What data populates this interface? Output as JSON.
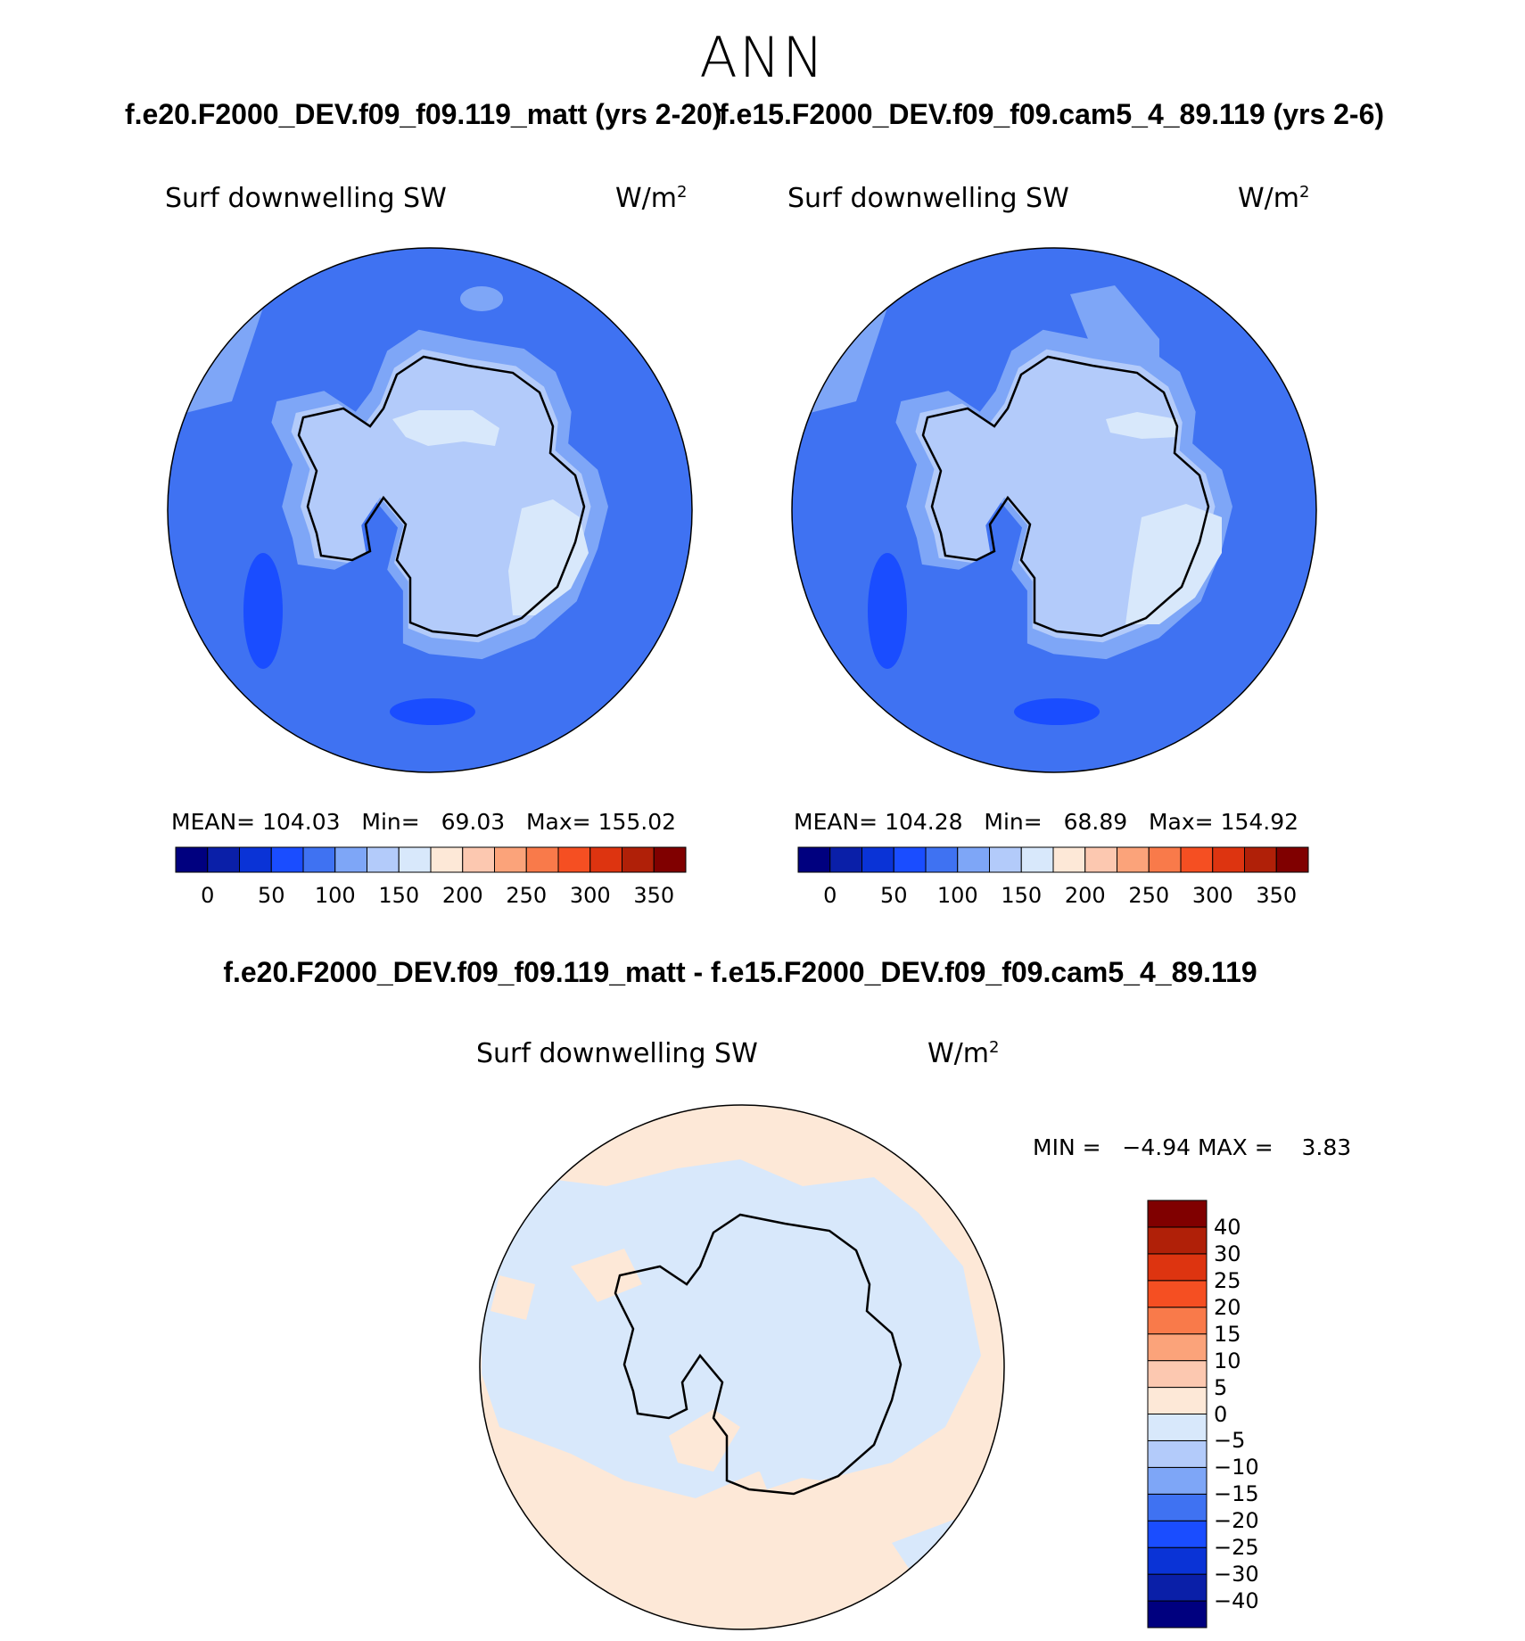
{
  "season": "ANN",
  "case1_title": "f.e20.F2000_DEV.f09_f09.119_matt (yrs 2-20)",
  "case2_title": "f.e15.F2000_DEV.f09_f09.cam5_4_89.119 (yrs 2-6)",
  "diff_title": "f.e20.F2000_DEV.f09_f09.119_matt - f.e15.F2000_DEV.f09_f09.cam5_4_89.119",
  "panels": [
    {
      "variable": "Surf downwelling SW",
      "units": "W/m",
      "units_sup": "2",
      "stats": {
        "mean_label": "MEAN=",
        "mean": "104.03",
        "min_label": "Min=",
        "min": "69.03",
        "max_label": "Max=",
        "max": "155.02"
      }
    },
    {
      "variable": "Surf downwelling SW",
      "units": "W/m",
      "units_sup": "2",
      "stats": {
        "mean_label": "MEAN=",
        "mean": "104.28",
        "min_label": "Min=",
        "min": "68.89",
        "max_label": "Max=",
        "max": "154.92"
      }
    },
    {
      "variable": "Surf downwelling SW",
      "units": "W/m",
      "units_sup": "2",
      "stats": {
        "min_label": "MIN =",
        "min": "−4.94",
        "max_label": "MAX =",
        "max": "3.83"
      }
    }
  ],
  "colorbar_main": {
    "colors": [
      "#00007f",
      "#0a1fa8",
      "#0a33d6",
      "#1a4dff",
      "#3f72f2",
      "#7ea6f7",
      "#b3cbfa",
      "#d8e8fb",
      "#fde8d7",
      "#fcc8b0",
      "#fba37a",
      "#f97a4a",
      "#f54f22",
      "#dd3410",
      "#b02008",
      "#800000"
    ],
    "labels": [
      "0",
      "50",
      "100",
      "150",
      "200",
      "250",
      "300",
      "350"
    ]
  },
  "colorbar_diff": {
    "colors": [
      "#00007f",
      "#0a1fa8",
      "#0a33d6",
      "#1a4dff",
      "#3f72f2",
      "#7ea6f7",
      "#b3cbfa",
      "#d8e8fb",
      "#fde8d7",
      "#fcc8b0",
      "#fba37a",
      "#f97a4a",
      "#f54f22",
      "#dd3410",
      "#b02008",
      "#800000"
    ],
    "labels": [
      "−40",
      "−30",
      "−25",
      "−20",
      "−15",
      "−10",
      "−5",
      "0",
      "5",
      "10",
      "15",
      "20",
      "25",
      "30",
      "40"
    ]
  }
}
